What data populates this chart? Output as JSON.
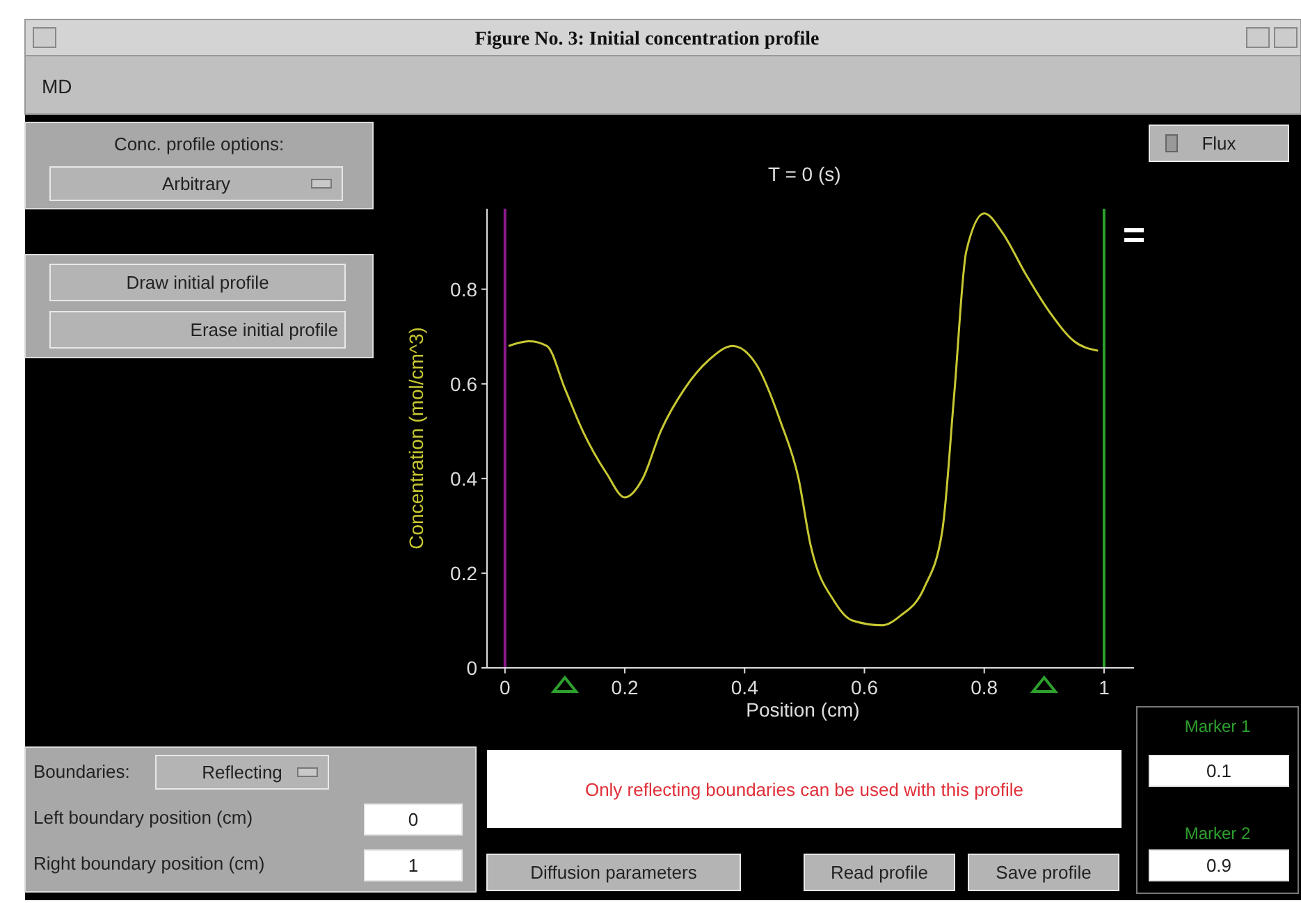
{
  "chart_data": {
    "type": "line",
    "title": "T = 0 (s)",
    "xlabel": "Position (cm)",
    "ylabel": "Concentration (mol/cm^3)",
    "xlim": [
      -0.03,
      1.05
    ],
    "ylim": [
      0,
      0.97
    ],
    "xticks": [
      0,
      0.2,
      0.4,
      0.6,
      0.8,
      1
    ],
    "yticks": [
      0,
      0.2,
      0.4,
      0.6,
      0.8
    ],
    "x": [
      0.006,
      0.04,
      0.07,
      0.1,
      0.13,
      0.17,
      0.2,
      0.23,
      0.26,
      0.3,
      0.34,
      0.38,
      0.42,
      0.46,
      0.49,
      0.51,
      0.55,
      0.58,
      0.63,
      0.66,
      0.7,
      0.73,
      0.75,
      0.77,
      0.8,
      0.83,
      0.87,
      0.91,
      0.95,
      0.99
    ],
    "series": [
      {
        "color": "#c8c832",
        "values": [
          0.68,
          0.69,
          0.68,
          0.59,
          0.5,
          0.41,
          0.36,
          0.4,
          0.5,
          0.59,
          0.65,
          0.68,
          0.64,
          0.52,
          0.4,
          0.26,
          0.14,
          0.1,
          0.09,
          0.11,
          0.17,
          0.29,
          0.58,
          0.88,
          0.96,
          0.92,
          0.83,
          0.75,
          0.69,
          0.67
        ]
      }
    ],
    "ref_lines": [
      {
        "axis": "x",
        "value": 0,
        "color": "#8b1a8b"
      },
      {
        "axis": "x",
        "value": 1,
        "color": "#2e9e2e"
      }
    ],
    "marker": "none",
    "line_style": "solid",
    "grid": false,
    "annotations": [
      "Figure No. 3: Initial concentration profile",
      "MD",
      "Conc. profile options:",
      "Arbitrary",
      "Flux",
      "Draw initial profile",
      "Erase initial profile",
      "Boundaries:",
      "Reflecting",
      "Left boundary position (cm)",
      "0",
      "Right boundary position (cm)",
      "1",
      "Only reflecting boundaries can be used with this profile",
      "Diffusion parameters",
      "Read profile",
      "Save profile",
      "Marker 1",
      "0.1",
      "Marker 2",
      "0.9"
    ]
  }
}
